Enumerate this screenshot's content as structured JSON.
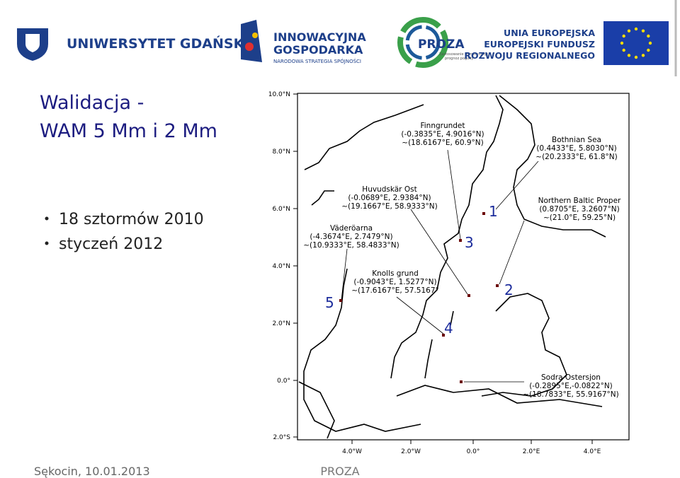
{
  "header": {
    "ug": "UNIWERSYTET GDAŃSKI",
    "ig": [
      "INNOWACYJNA",
      "GOSPODARKA",
      "NARODOWA STRATEGIA SPÓJNOŚCI"
    ],
    "proza": [
      "PROZA",
      "Zastosowanie numerycznych",
      "prognoz pogody"
    ],
    "eu": [
      "UNIA EUROPEJSKA",
      "EUROPEJSKI FUNDUSZ",
      "ROZWOJU REGIONALNEGO"
    ]
  },
  "title": [
    "Walidacja -",
    "WAM 5 Mm i 2 Mm"
  ],
  "bullets": [
    "18 sztormów 2010",
    "styczeń 2012"
  ],
  "map": {
    "lat_labels": [
      "10.0°N",
      "8.0°N",
      "6.0°N",
      "4.0°N",
      "2.0°N",
      "0.0°",
      "2.0°S"
    ],
    "lon_labels": [
      "4.0°W",
      "2.0°W",
      "0.0°",
      "2.0°E",
      "4.0°E"
    ],
    "stations": [
      {
        "name": "Finngrundet",
        "lines": [
          "(-0.3835°E, 4.9016°N)",
          "~(18.6167°E, 60.9°N)"
        ],
        "number": "3"
      },
      {
        "name": "Bothnian Sea",
        "lines": [
          "(0.4433°E, 5.8030°N)",
          "~(20.2333°E, 61.8°N)"
        ],
        "number": "1"
      },
      {
        "name": "Huvudskär Ost",
        "lines": [
          "(-0.0689°E, 2.9384°N)",
          "~(19.1667°E, 58.9333°N)"
        ]
      },
      {
        "name": "Northern Baltic Proper",
        "lines": [
          "(0.8705°E, 3.2607°N)",
          "~(21.0°E, 59.25°N)"
        ],
        "number": "2"
      },
      {
        "name": "Väderöarna",
        "lines": [
          "(-4.3674°E, 2.7479°N)",
          "~(10.9333°E, 58.4833°N)"
        ],
        "number": "5"
      },
      {
        "name": "Knolls grund",
        "lines": [
          "(-0.9043°E, 1.5277°N)",
          "~(17.6167°E, 57.5167°"
        ],
        "number": "4"
      },
      {
        "name": "Sodra Ostersjon",
        "lines": [
          "(-0.2895°E,-0.0822°N)",
          "~(18.7833°E, 55.9167°N)"
        ]
      }
    ]
  },
  "footer": {
    "left": "Sękocin, 10.01.2013",
    "center": "PROZA"
  }
}
